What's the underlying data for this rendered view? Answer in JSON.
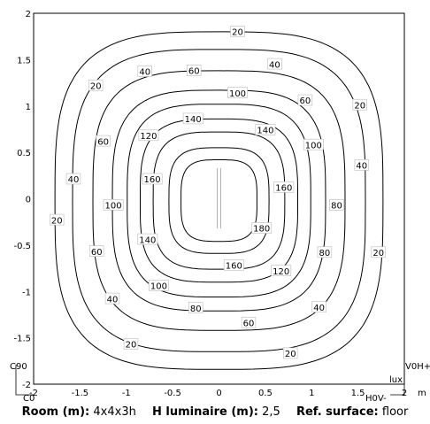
{
  "chart_data": {
    "type": "contour",
    "x_ticks": [
      "-2",
      "-1.5",
      "-1",
      "-0.5",
      "0",
      "0.5",
      "1",
      "1.5",
      "2"
    ],
    "y_ticks": [
      "2",
      "1.5",
      "1",
      "0.5",
      "0",
      "-0.5",
      "-1",
      "-1.5",
      "-2"
    ],
    "xlim": [
      -2,
      2
    ],
    "ylim": [
      -2,
      2
    ],
    "grid": false,
    "unit": "lux",
    "unit_x": "m",
    "marker_left_top": "C90",
    "marker_left_bottom": "C0",
    "marker_right_top": "V0H+",
    "marker_right_bottom": "H0V-",
    "levels": [
      {
        "value": 20,
        "a": 1.77,
        "b": 1.82,
        "labels": [
          {
            "text": "20",
            "x": 0.2,
            "y": 1.8
          },
          {
            "text": "20",
            "x": -1.33,
            "y": 1.22
          },
          {
            "text": "20",
            "x": 1.52,
            "y": 1.01
          },
          {
            "text": "20",
            "x": -1.75,
            "y": -0.23
          },
          {
            "text": "20",
            "x": 1.72,
            "y": -0.58
          },
          {
            "text": "20",
            "x": -0.95,
            "y": -1.57
          },
          {
            "text": "20",
            "x": 0.77,
            "y": -1.67
          }
        ]
      },
      {
        "value": 40,
        "a": 1.58,
        "b": 1.63,
        "labels": [
          {
            "text": "40",
            "x": -0.8,
            "y": 1.37
          },
          {
            "text": "40",
            "x": 0.6,
            "y": 1.45
          },
          {
            "text": "40",
            "x": 1.54,
            "y": 0.36
          },
          {
            "text": "40",
            "x": -1.57,
            "y": 0.21
          },
          {
            "text": "40",
            "x": -1.15,
            "y": -1.08
          },
          {
            "text": "40",
            "x": 1.08,
            "y": -1.17
          }
        ]
      },
      {
        "value": 60,
        "a": 1.36,
        "b": 1.4,
        "labels": [
          {
            "text": "60",
            "x": -0.27,
            "y": 1.38
          },
          {
            "text": "60",
            "x": 0.93,
            "y": 1.06
          },
          {
            "text": "60",
            "x": -1.25,
            "y": 0.62
          },
          {
            "text": "60",
            "x": -1.32,
            "y": -0.57
          },
          {
            "text": "60",
            "x": 0.32,
            "y": -1.34
          }
        ]
      },
      {
        "value": 80,
        "a": 1.15,
        "b": 1.19,
        "labels": [
          {
            "text": "80",
            "x": 1.27,
            "y": -0.07
          },
          {
            "text": "80",
            "x": 1.14,
            "y": -0.58
          },
          {
            "text": "80",
            "x": -0.25,
            "y": -1.18
          }
        ]
      },
      {
        "value": 100,
        "a": 0.99,
        "b": 1.04,
        "labels": [
          {
            "text": "100",
            "x": 0.2,
            "y": 1.14
          },
          {
            "text": "100",
            "x": 1.02,
            "y": 0.58
          },
          {
            "text": "100",
            "x": -1.14,
            "y": -0.07
          },
          {
            "text": "100",
            "x": -0.65,
            "y": -0.94
          }
        ]
      },
      {
        "value": 120,
        "a": 0.85,
        "b": 0.88,
        "labels": [
          {
            "text": "120",
            "x": -0.76,
            "y": 0.68
          },
          {
            "text": "120",
            "x": 0.67,
            "y": -0.78
          }
        ]
      },
      {
        "value": 140,
        "a": 0.71,
        "b": 0.74,
        "labels": [
          {
            "text": "140",
            "x": -0.28,
            "y": 0.86
          },
          {
            "text": "140",
            "x": 0.5,
            "y": 0.74
          },
          {
            "text": "140",
            "x": -0.77,
            "y": -0.44
          }
        ]
      },
      {
        "value": 160,
        "a": 0.54,
        "b": 0.57,
        "labels": [
          {
            "text": "160",
            "x": -0.72,
            "y": 0.21
          },
          {
            "text": "160",
            "x": 0.7,
            "y": 0.12
          },
          {
            "text": "160",
            "x": 0.16,
            "y": -0.72
          }
        ]
      },
      {
        "value": 180,
        "a": 0.41,
        "b": 0.44,
        "labels": [
          {
            "text": "180",
            "x": 0.46,
            "y": -0.32
          }
        ]
      }
    ]
  },
  "footer": {
    "room_label": "Room (m):",
    "room_value": "4x4x3h",
    "height_label": "H luminaire (m):",
    "height_value": "2,5",
    "surface_label": "Ref. surface:",
    "surface_value": "floor"
  }
}
